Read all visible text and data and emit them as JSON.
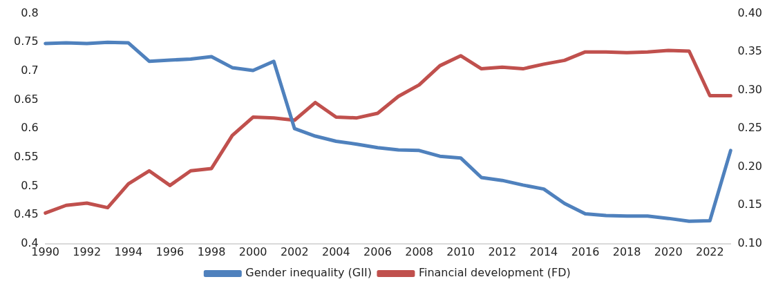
{
  "chart_data": {
    "type": "line",
    "categories": [
      "1990",
      null,
      "1992",
      null,
      "1994",
      null,
      "1996",
      null,
      "1998",
      null,
      "2000",
      null,
      "2002",
      null,
      "2004",
      null,
      "2006",
      null,
      "2008",
      null,
      "2010",
      null,
      "2012",
      null,
      "2014",
      null,
      "2016",
      null,
      "2018",
      null,
      "2020",
      null,
      "2022",
      null
    ],
    "series": [
      {
        "name": "Gender inequality (GII)",
        "color": "#4f81bd",
        "values": [
          0.748,
          0.749,
          0.748,
          0.75,
          0.749,
          0.717,
          0.719,
          0.721,
          0.725,
          0.706,
          0.701,
          0.717,
          0.6,
          0.587,
          0.578,
          0.573,
          0.567,
          0.563,
          0.562,
          0.552,
          0.549,
          0.515,
          0.51,
          0.502,
          0.495,
          0.47,
          0.452,
          0.449,
          0.448,
          0.448,
          0.444,
          0.439,
          0.44,
          0.562
        ]
      },
      {
        "name": "Financial development (FD)",
        "color": "#c0504d",
        "axis": "y2",
        "values": [
          0.14,
          0.15,
          0.153,
          0.147,
          0.178,
          0.195,
          0.176,
          0.195,
          0.198,
          0.241,
          0.265,
          0.264,
          0.261,
          0.284,
          0.265,
          0.264,
          0.27,
          0.292,
          0.307,
          0.332,
          0.345,
          0.328,
          0.33,
          0.328,
          0.334,
          0.339,
          0.35,
          0.35,
          0.349,
          0.35,
          0.352,
          0.351,
          0.293,
          0.293
        ]
      }
    ],
    "ylim": [
      0.4,
      0.8
    ],
    "yticks": [
      0.4,
      0.45,
      0.5,
      0.55,
      0.6,
      0.65,
      0.7,
      0.75,
      0.8
    ],
    "y2lim": [
      0.1,
      0.4
    ],
    "y2ticks": [
      {
        "value": 0.1,
        "label": "0.10"
      },
      {
        "value": 0.15,
        "label": "0.15"
      },
      {
        "value": 0.2,
        "label": "0.20"
      },
      {
        "value": 0.25,
        "label": "0.25"
      },
      {
        "value": 0.3,
        "label": "0.30"
      },
      {
        "value": 0.35,
        "label": "0.35"
      },
      {
        "value": 0.4,
        "label": "0.40"
      }
    ],
    "grid": false,
    "legend": "bottom",
    "marker": "none",
    "line_style": "solid"
  }
}
